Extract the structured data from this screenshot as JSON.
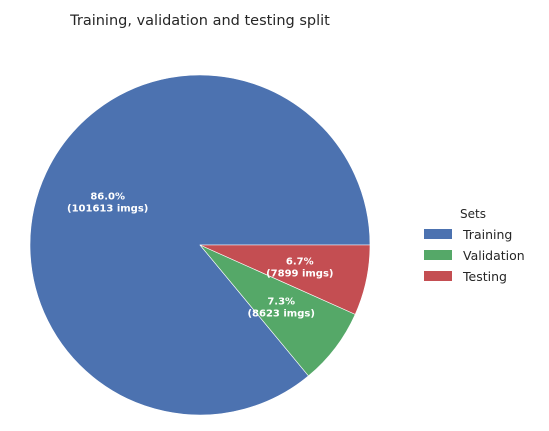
{
  "chart_data": {
    "type": "pie",
    "title": "Training, validation and testing split",
    "legend_title": "Sets",
    "legend_position": "right",
    "start_angle_deg": 0,
    "direction": "counterclockwise",
    "slices": [
      {
        "name": "Training",
        "value": 101613,
        "percent": 86.0,
        "color": "#4c72b0",
        "pct_label": "86.0%",
        "count_label": "(101613 imgs)"
      },
      {
        "name": "Validation",
        "value": 8623,
        "percent": 7.3,
        "color": "#55a868",
        "pct_label": "7.3%",
        "count_label": "(8623 imgs)"
      },
      {
        "name": "Testing",
        "value": 7899,
        "percent": 6.7,
        "color": "#c44e52",
        "pct_label": "6.7%",
        "count_label": "(7899 imgs)"
      }
    ]
  }
}
